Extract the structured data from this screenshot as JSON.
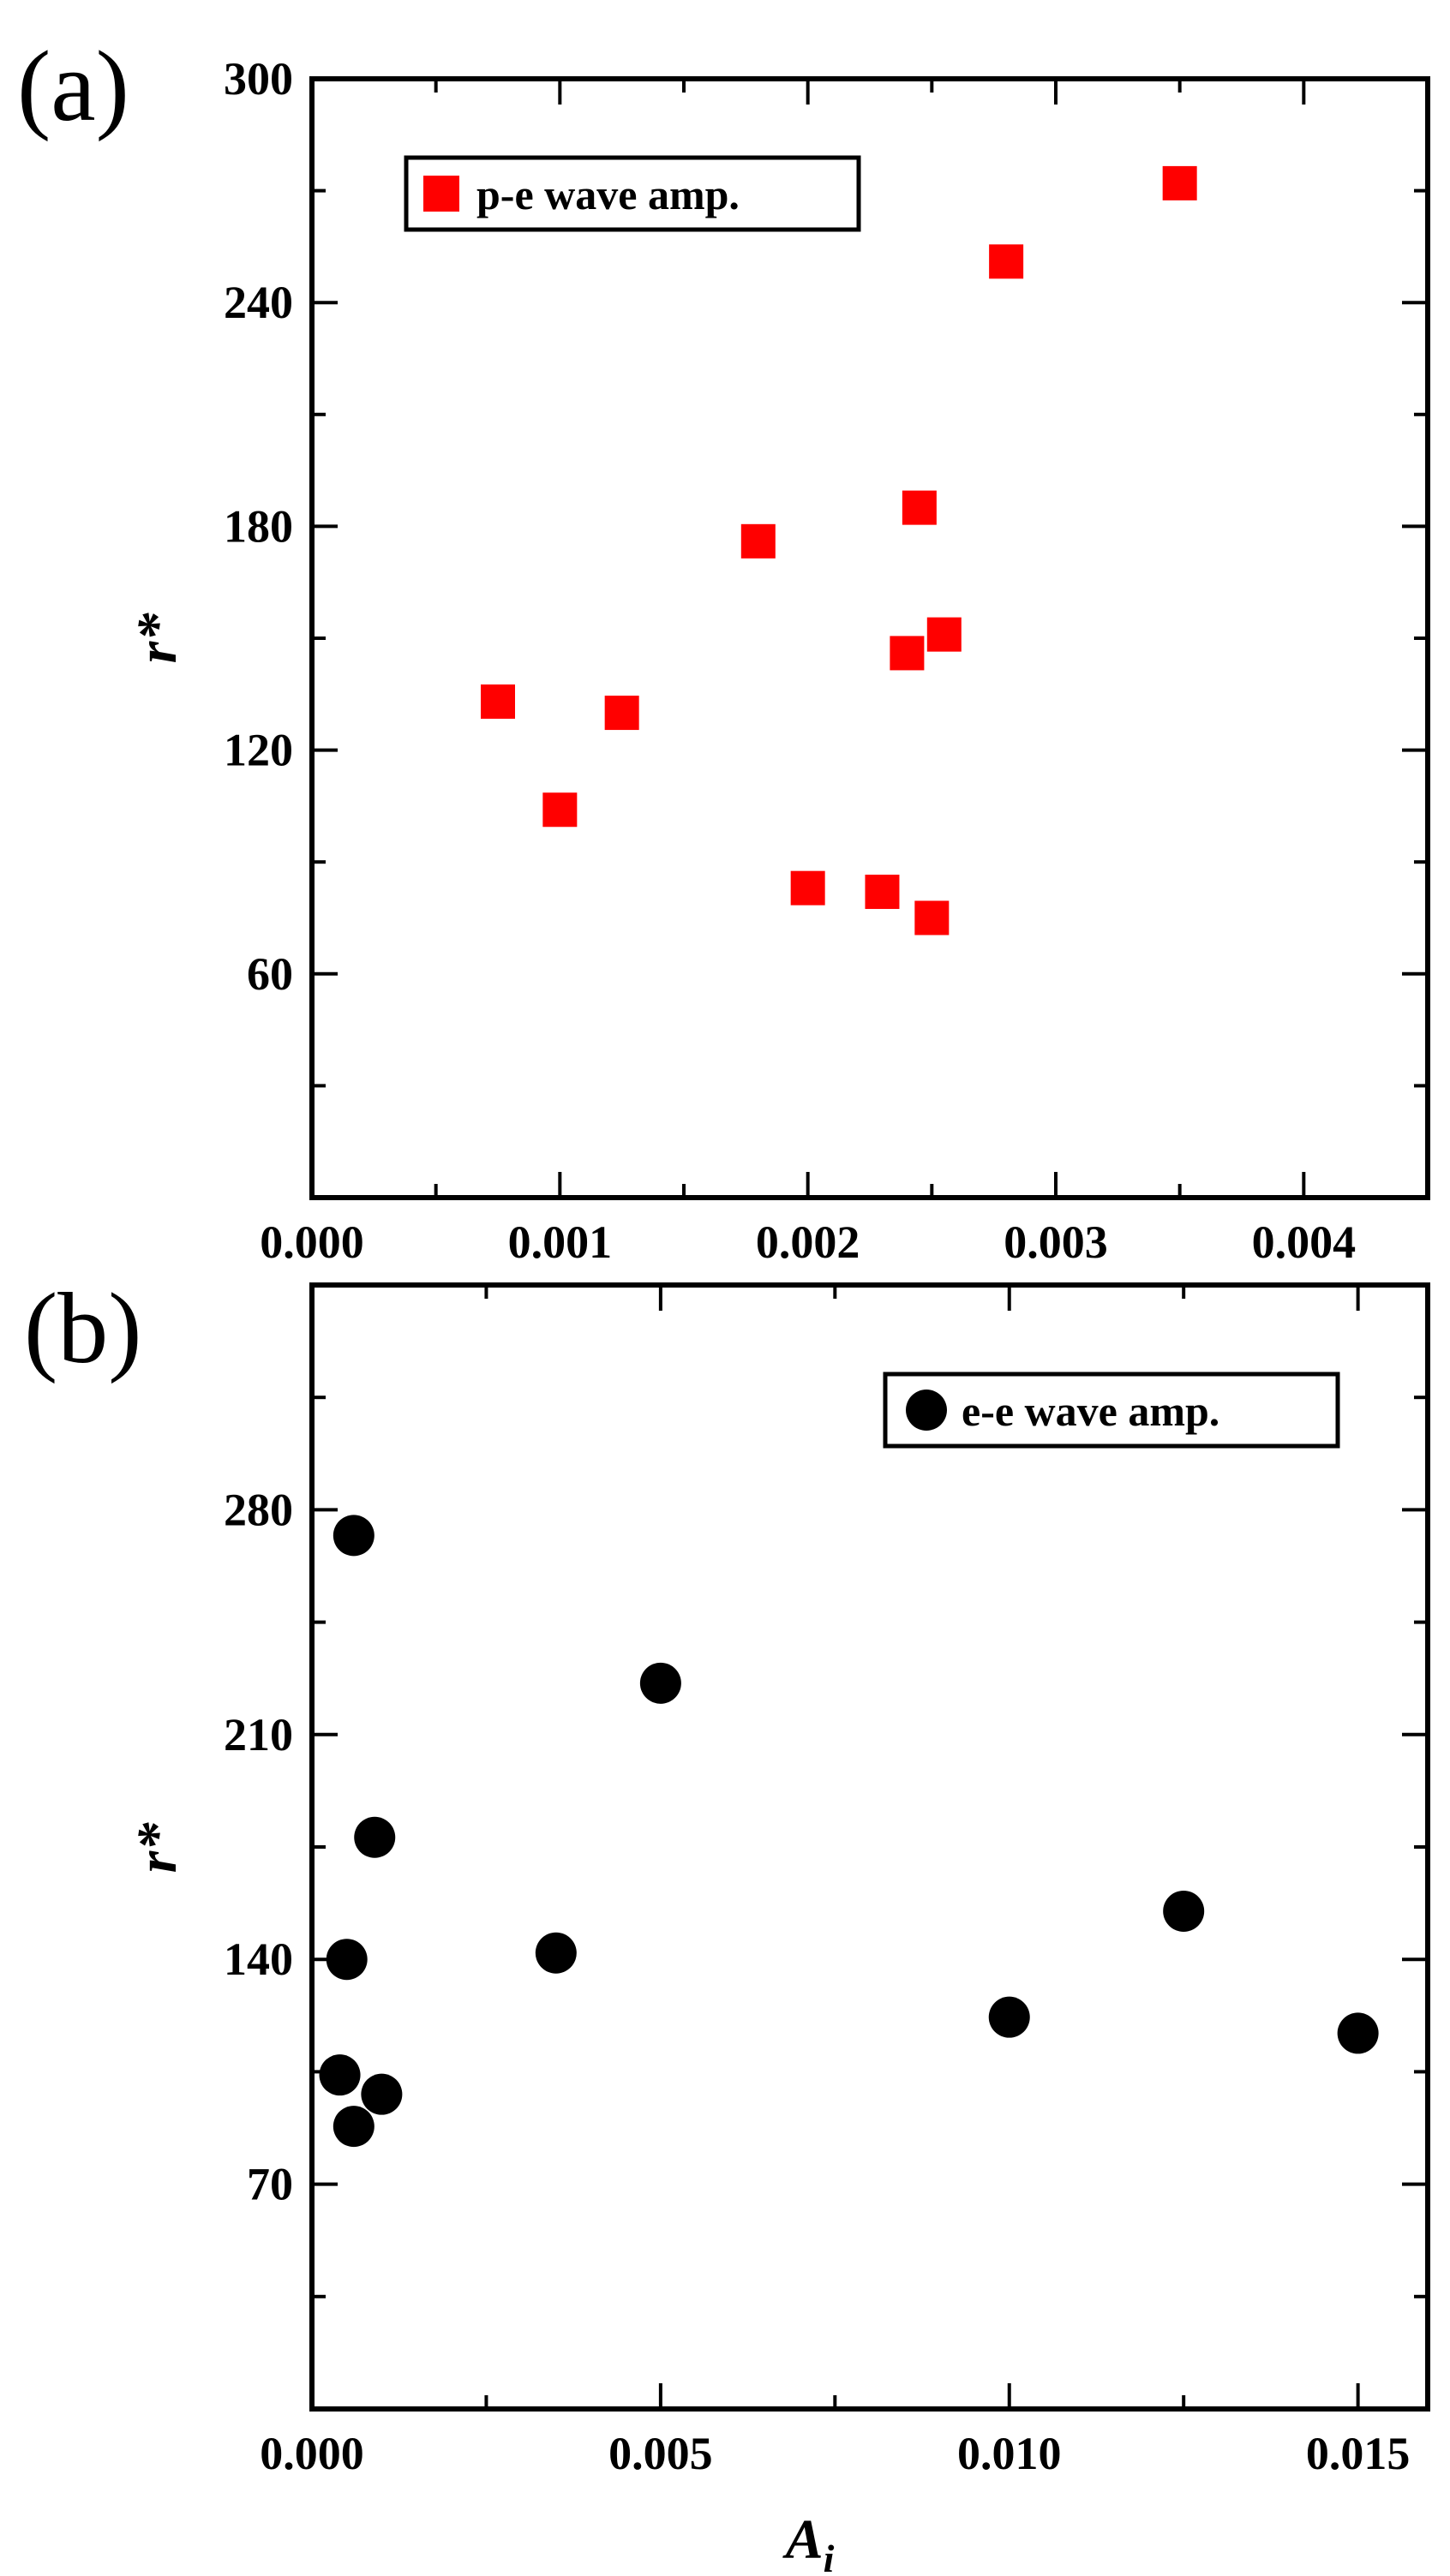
{
  "chart_data": [
    {
      "type": "scatter",
      "panel_label": "(a)",
      "ylabel": "r*",
      "xlabel": "",
      "xlim": [
        0,
        0.0045
      ],
      "ylim": [
        0,
        300
      ],
      "x_ticks": [
        0,
        0.001,
        0.002,
        0.003,
        0.004
      ],
      "x_tick_labels": [
        "0.000",
        "0.001",
        "0.002",
        "0.003",
        "0.004"
      ],
      "y_ticks": [
        60,
        120,
        180,
        240,
        300
      ],
      "y_tick_labels": [
        "60",
        "120",
        "180",
        "240",
        "300"
      ],
      "grid": false,
      "legend_position": "top-left",
      "series": [
        {
          "name": "p-e wave amp.",
          "marker": "square",
          "color": "#ff0000",
          "points": [
            {
              "x": 0.00075,
              "y": 133
            },
            {
              "x": 0.001,
              "y": 104
            },
            {
              "x": 0.00125,
              "y": 130
            },
            {
              "x": 0.0018,
              "y": 176
            },
            {
              "x": 0.002,
              "y": 83
            },
            {
              "x": 0.0023,
              "y": 82
            },
            {
              "x": 0.0024,
              "y": 146
            },
            {
              "x": 0.00245,
              "y": 185
            },
            {
              "x": 0.0025,
              "y": 75
            },
            {
              "x": 0.00255,
              "y": 151
            },
            {
              "x": 0.0028,
              "y": 251
            },
            {
              "x": 0.0035,
              "y": 272
            }
          ]
        }
      ]
    },
    {
      "type": "scatter",
      "panel_label": "(b)",
      "ylabel": "r*",
      "xlabel": "A",
      "xlabel_sub": "i",
      "xlim": [
        0,
        0.016
      ],
      "ylim": [
        0,
        350
      ],
      "x_ticks": [
        0,
        0.005,
        0.01,
        0.015
      ],
      "x_tick_labels": [
        "0.000",
        "0.005",
        "0.010",
        "0.015"
      ],
      "y_ticks": [
        70,
        140,
        210,
        280
      ],
      "y_tick_labels": [
        "70",
        "140",
        "210",
        "280"
      ],
      "grid": false,
      "legend_position": "top-right",
      "series": [
        {
          "name": "e-e wave amp.",
          "marker": "circle",
          "color": "#000000",
          "points": [
            {
              "x": 0.0004,
              "y": 104
            },
            {
              "x": 0.0005,
              "y": 140
            },
            {
              "x": 0.0006,
              "y": 272
            },
            {
              "x": 0.0006,
              "y": 88
            },
            {
              "x": 0.0009,
              "y": 178
            },
            {
              "x": 0.001,
              "y": 98
            },
            {
              "x": 0.0035,
              "y": 142
            },
            {
              "x": 0.005,
              "y": 226
            },
            {
              "x": 0.01,
              "y": 122
            },
            {
              "x": 0.0125,
              "y": 155
            },
            {
              "x": 0.015,
              "y": 117
            }
          ]
        }
      ]
    }
  ]
}
